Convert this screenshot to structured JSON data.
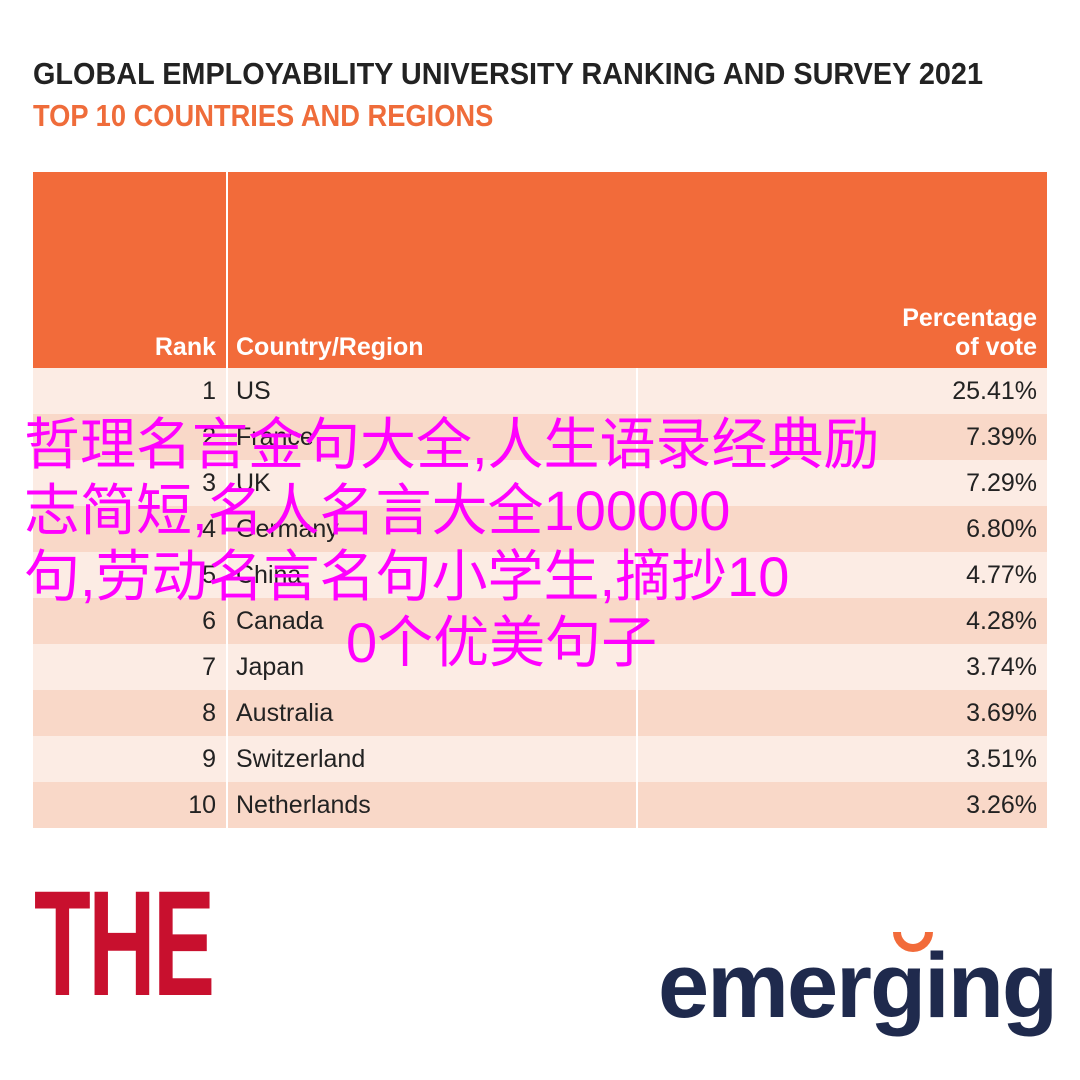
{
  "header": {
    "title": "GLOBAL EMPLOYABILITY UNIVERSITY RANKING AND SURVEY 2021",
    "subtitle": "TOP 10 COUNTRIES AND REGIONS"
  },
  "table": {
    "columns": [
      "Rank",
      "Country/Region",
      "Percentage of vote"
    ],
    "rows": [
      [
        "1",
        "US",
        "25.41%"
      ],
      [
        "2",
        "France",
        "7.39%"
      ],
      [
        "3",
        "UK",
        "7.29%"
      ],
      [
        "4",
        "Germany",
        "6.80%"
      ],
      [
        "5",
        "China",
        "4.77%"
      ],
      [
        "6",
        "Canada",
        "4.28%"
      ],
      [
        "7",
        "Japan",
        "3.74%"
      ],
      [
        "8",
        "Australia",
        "3.69%"
      ],
      [
        "9",
        "Switzerland",
        "3.51%"
      ],
      [
        "10",
        "Netherlands",
        "3.26%"
      ]
    ]
  },
  "overlay": {
    "lines": [
      "哲理名言金句大全,人生语录经典励",
      "志简短,名人名言大全100000",
      "句,劳动名言名句小学生,摘抄10",
      "0个优美句子"
    ]
  },
  "logos": {
    "left": "THE",
    "right": "emerging"
  }
}
